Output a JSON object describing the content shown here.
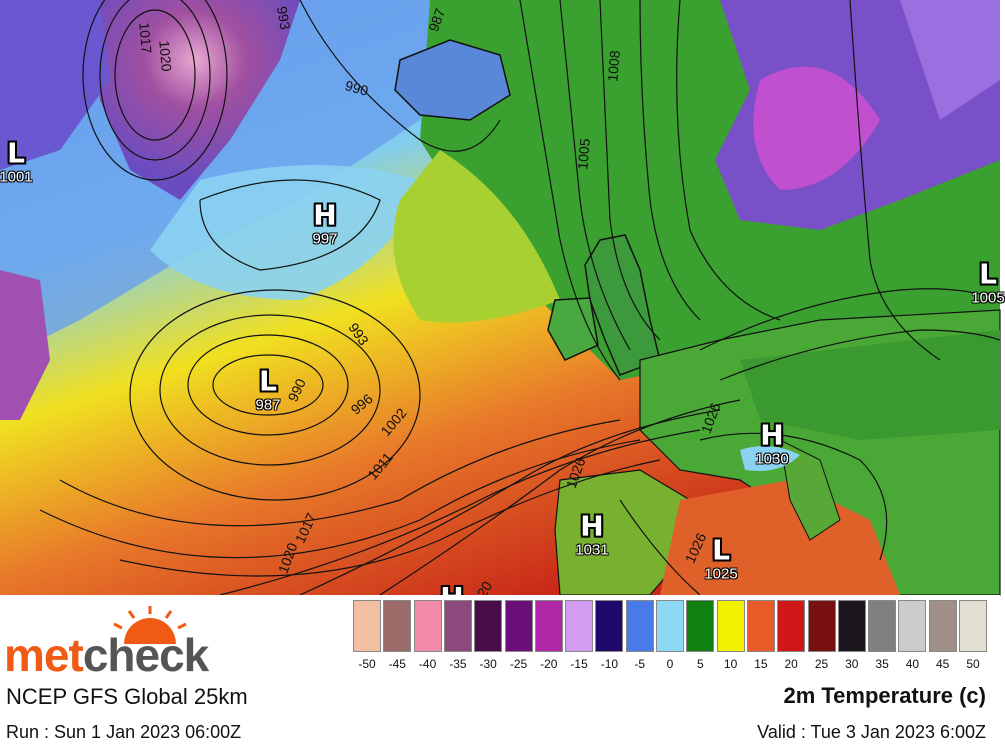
{
  "map": {
    "pressure_systems": [
      {
        "type": "L",
        "value": "1001"
      },
      {
        "type": "H",
        "value": "997"
      },
      {
        "type": "L",
        "value": "987"
      },
      {
        "type": "H",
        "value": "1030"
      },
      {
        "type": "H",
        "value": "1031"
      },
      {
        "type": "L",
        "value": "1025"
      },
      {
        "type": "L",
        "value": "1005"
      },
      {
        "type": "H",
        "value": ""
      }
    ],
    "isobar_labels": [
      "993",
      "987",
      "1020",
      "1017",
      "990",
      "1008",
      "1005",
      "993",
      "990",
      "996",
      "1002",
      "1011",
      "1026",
      "1020",
      "1017",
      "1020",
      "1026",
      "1026"
    ]
  },
  "footer": {
    "brand_met": "met",
    "brand_check": "check",
    "model": "NCEP GFS Global 25km",
    "run": "Run : Sun 1 Jan 2023 06:00Z",
    "title": "2m Temperature (c)",
    "valid": "Valid : Tue 3 Jan 2023 6:00Z"
  },
  "legend": {
    "labels": [
      "-50",
      "-45",
      "-40",
      "-35",
      "-30",
      "-25",
      "-20",
      "-15",
      "-10",
      "-5",
      "0",
      "5",
      "10",
      "15",
      "20",
      "25",
      "30",
      "35",
      "40",
      "45",
      "50"
    ],
    "colors": [
      "#f2c0a0",
      "#9c6a68",
      "#f08aa8",
      "#8c4a7c",
      "#4a0c4a",
      "#6a1078",
      "#b028a8",
      "#d49cf0",
      "#20086a",
      "#4a7ae8",
      "#8cd8f4",
      "#108010",
      "#f0f000",
      "#e85a28",
      "#d01818",
      "#781010",
      "#1c141c",
      "#808080",
      "#cccccc",
      "#a09088",
      "#e2ded2"
    ]
  }
}
